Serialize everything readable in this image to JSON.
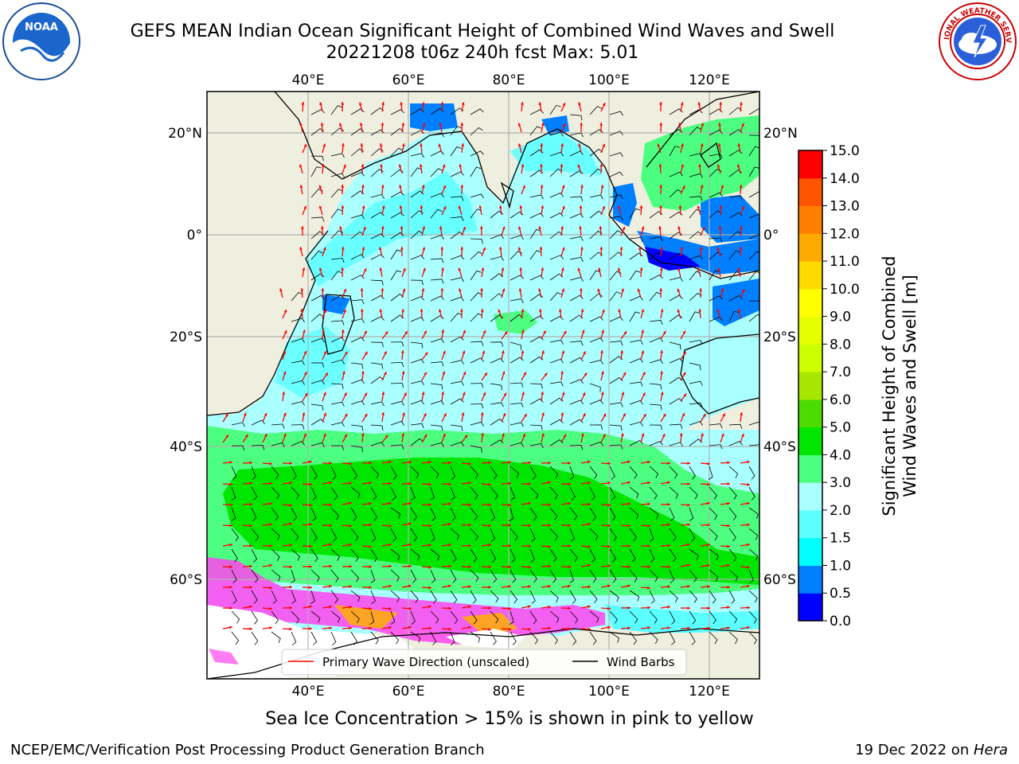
{
  "title": {
    "line1": "GEFS MEAN Indian Ocean Significant Height of Combined Wind Waves and Swell",
    "line2": "20221208 t06z 240h fcst   Max: 5.01"
  },
  "logos": {
    "left": {
      "icon": "noaa-logo-icon",
      "text": "NOAA",
      "ring_text": "NATIONAL OCEANIC AND ATMOSPHERIC ADMINISTRATION · U.S. DEPARTMENT OF COMMERCE"
    },
    "right": {
      "icon": "nws-logo-icon",
      "ring_text": "NATIONAL WEATHER SERVICE"
    }
  },
  "map": {
    "lon_ticks": [
      "40°E",
      "60°E",
      "80°E",
      "100°E",
      "120°E"
    ],
    "lat_ticks": [
      "20°N",
      "0°",
      "20°S",
      "40°S",
      "60°S"
    ],
    "lon_range": [
      20,
      130
    ],
    "lat_range": [
      -74,
      28
    ],
    "colors": {
      "land": "#efefdf",
      "ocean_low": "#0000ff",
      "ocean_mid": "#aaffff",
      "ocean_high": "#00e600",
      "ice": "#ff44ee"
    }
  },
  "legend": {
    "items": [
      {
        "label": "Primary Wave Direction (unscaled)",
        "color": "#ff0000"
      },
      {
        "label": "Wind Barbs",
        "color": "#000000"
      }
    ]
  },
  "colorbar": {
    "title_line1": "Significant Height of Combined",
    "title_line2": "Wind Waves and Swell [m]",
    "labels": [
      "0.0",
      "0.5",
      "1.0",
      "1.5",
      "2.0",
      "3.0",
      "4.0",
      "5.0",
      "6.0",
      "7.0",
      "8.0",
      "9.0",
      "10.0",
      "11.0",
      "12.0",
      "13.0",
      "14.0",
      "15.0"
    ],
    "colors": [
      "#0000ff",
      "#0080ff",
      "#00ffff",
      "#5cffff",
      "#aaffff",
      "#4dff80",
      "#00e600",
      "#4ddc00",
      "#a6e600",
      "#ccff00",
      "#e6ff00",
      "#ffff00",
      "#ffd900",
      "#ffaa00",
      "#ff8000",
      "#ff5500",
      "#ff0000"
    ]
  },
  "note": "Sea Ice Concentration > 15% is shown in pink to yellow",
  "footer": {
    "left": "NCEP/EMC/Verification Post Processing Product Generation Branch",
    "right_date": "19 Dec 2022 on ",
    "right_host": "Hera"
  }
}
